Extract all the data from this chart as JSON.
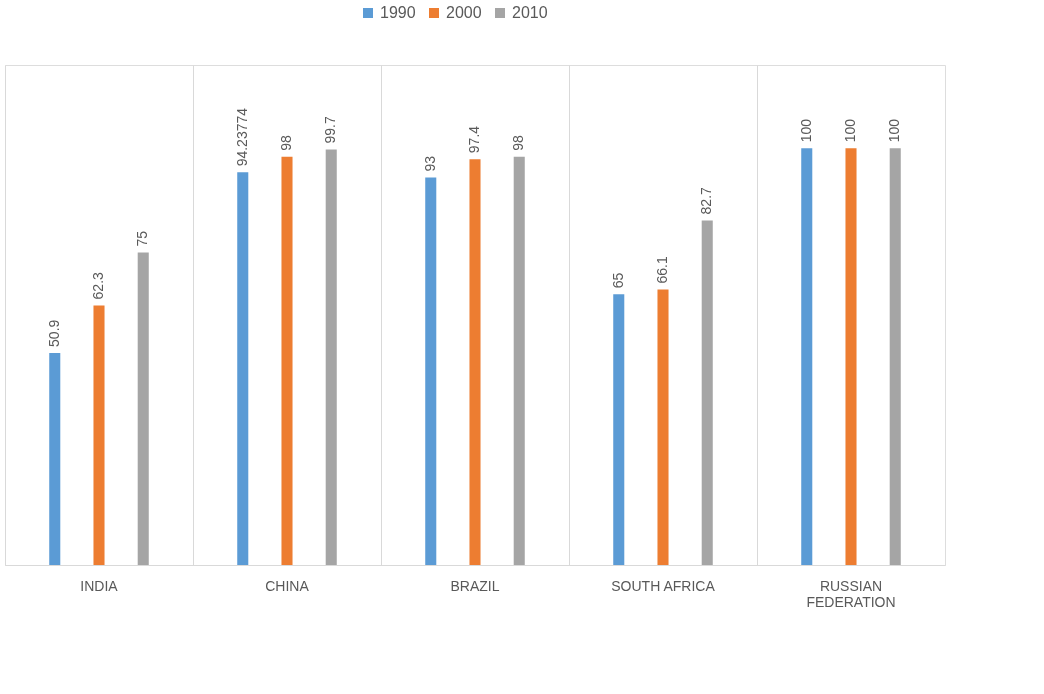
{
  "chart_data": {
    "type": "bar",
    "categories": [
      "INDIA",
      "CHINA",
      "BRAZIL",
      "SOUTH AFRICA",
      "RUSSIAN FEDERATION"
    ],
    "series": [
      {
        "name": "1990",
        "color": "#5b9bd5",
        "values": [
          50.9,
          94.23774,
          93,
          65,
          100
        ]
      },
      {
        "name": "2000",
        "color": "#ed7d31",
        "values": [
          62.3,
          98,
          97.4,
          66.1,
          100
        ]
      },
      {
        "name": "2010",
        "color": "#a5a5a5",
        "values": [
          75,
          99.7,
          98,
          82.7,
          100
        ]
      }
    ],
    "ylim": [
      0,
      120
    ],
    "tick_labels": "x",
    "grid": "x",
    "legend": "top",
    "data_labels": true
  }
}
